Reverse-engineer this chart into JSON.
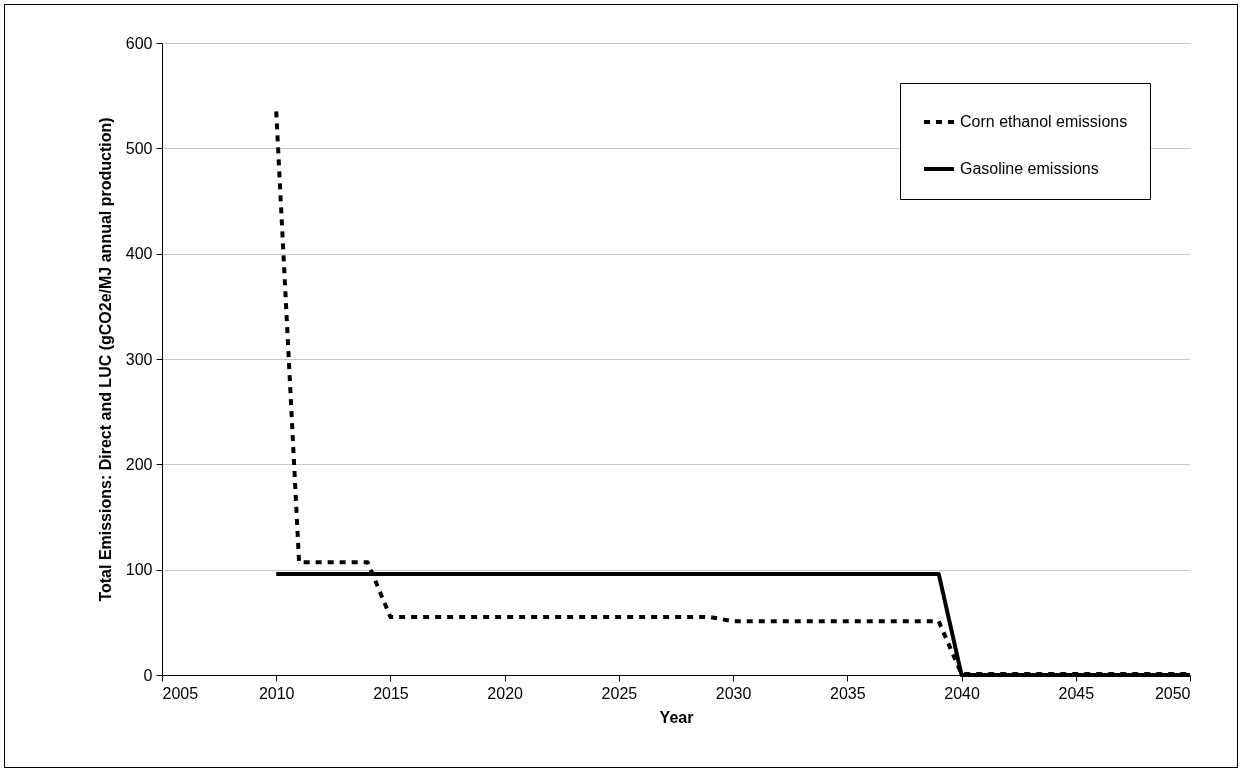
{
  "chart_data": {
    "type": "line",
    "xlabel": "Year",
    "ylabel": "Total Emissions: Direct and LUC (gCO2e/MJ annual production)",
    "x": [
      2010,
      2011,
      2012,
      2013,
      2014,
      2015,
      2016,
      2017,
      2018,
      2019,
      2020,
      2021,
      2022,
      2023,
      2024,
      2025,
      2026,
      2027,
      2028,
      2029,
      2030,
      2031,
      2032,
      2033,
      2034,
      2035,
      2036,
      2037,
      2038,
      2039,
      2040,
      2041,
      2042,
      2043,
      2044,
      2045,
      2046,
      2047,
      2048,
      2049,
      2050
    ],
    "series": [
      {
        "name": "Corn ethanol emissions",
        "color": "#000000",
        "line_style": "dashed",
        "values": [
          535,
          107,
          107,
          107,
          107,
          55,
          55,
          55,
          55,
          55,
          55,
          55,
          55,
          55,
          55,
          55,
          55,
          55,
          55,
          55,
          51,
          51,
          51,
          51,
          51,
          51,
          51,
          51,
          51,
          51,
          1,
          1,
          1,
          1,
          1,
          1,
          1,
          1,
          1,
          1,
          1
        ]
      },
      {
        "name": "Gasoline emissions",
        "color": "#000000",
        "line_style": "solid",
        "values": [
          96,
          96,
          96,
          96,
          96,
          96,
          96,
          96,
          96,
          96,
          96,
          96,
          96,
          96,
          96,
          96,
          96,
          96,
          96,
          96,
          96,
          96,
          96,
          96,
          96,
          96,
          96,
          96,
          96,
          96,
          0,
          0,
          0,
          0,
          0,
          0,
          0,
          0,
          0,
          0,
          0
        ]
      }
    ],
    "xlim": [
      2005,
      2050
    ],
    "xticks": [
      2005,
      2010,
      2015,
      2020,
      2025,
      2030,
      2035,
      2040,
      2045,
      2050
    ],
    "ylim": [
      0,
      600
    ],
    "yticks": [
      0,
      100,
      200,
      300,
      400,
      500,
      600
    ],
    "grid": "y",
    "legend": "top right",
    "marker": "none"
  }
}
